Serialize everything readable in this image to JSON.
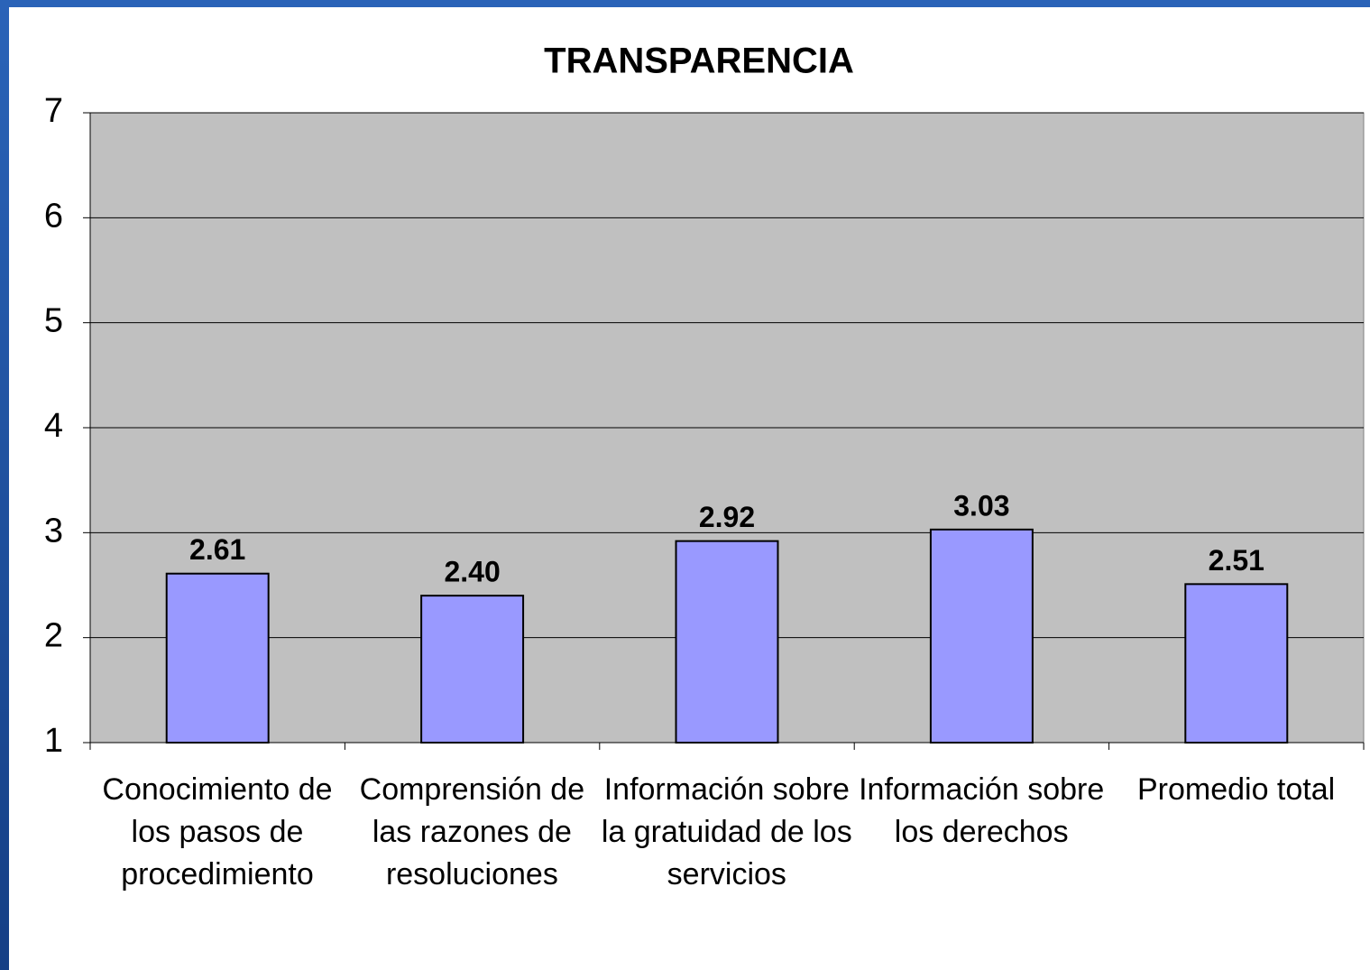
{
  "chart_data": {
    "type": "bar",
    "title": "TRANSPARENCIA",
    "categories": [
      "Conocimiento de los pasos de procedimiento",
      "Comprensión de las razones de resoluciones",
      "Información sobre la gratuidad de los servicios",
      "Información sobre los derechos",
      "Promedio total"
    ],
    "values": [
      2.61,
      2.4,
      2.92,
      3.03,
      2.51
    ],
    "value_labels": [
      "2.61",
      "2.40",
      "2.92",
      "3.03",
      "2.51"
    ],
    "color": "#9999ff",
    "ylim": [
      1,
      7
    ],
    "yticks": [
      1,
      2,
      3,
      4,
      5,
      6,
      7
    ],
    "grid": true
  }
}
